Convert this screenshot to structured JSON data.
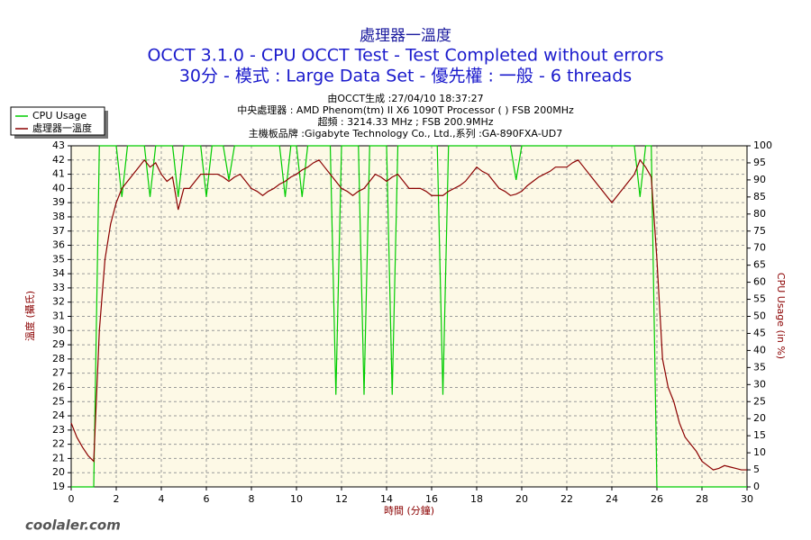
{
  "chart_data": {
    "type": "line",
    "title": "處理器一溫度",
    "subtitle": "OCCT 3.1.0 - CPU OCCT Test - Test Completed without errors",
    "subtitle2": "30分 - 模式 : Large Data Set - 優先權 : 一般 - 6 threads",
    "info": [
      "由OCCT生成 :27/04/10 18:37:27",
      "中央處理器 : AMD Phenom(tm) II X6 1090T Processor (  ) FSB 200MHz",
      "超頻 : 3214.33 MHz ; FSB 200.9MHz",
      "主機板品牌 :Gigabyte Technology Co., Ltd.,系列 :GA-890FXA-UD7"
    ],
    "x_label": "時間 (分鐘)",
    "y_label": "溫度 (攝氏)",
    "y2_label": "CPU Usage (in %)",
    "watermark": "coolaler.com",
    "xlim": [
      0,
      30
    ],
    "xticks": [
      0,
      2,
      4,
      6,
      8,
      10,
      12,
      14,
      16,
      18,
      20,
      22,
      24,
      26,
      28,
      30
    ],
    "ylim": [
      19,
      43
    ],
    "yticks": [
      19,
      20,
      21,
      22,
      23,
      24,
      25,
      26,
      27,
      28,
      29,
      30,
      31,
      32,
      33,
      34,
      35,
      36,
      37,
      38,
      39,
      40,
      41,
      42,
      43
    ],
    "y2lim": [
      0,
      100
    ],
    "y2ticks": [
      0,
      5,
      10,
      15,
      20,
      25,
      30,
      35,
      40,
      45,
      50,
      55,
      60,
      65,
      70,
      75,
      80,
      85,
      90,
      95,
      100
    ],
    "grid": true,
    "legend": "top-left",
    "x": [
      0,
      0.25,
      0.5,
      0.75,
      1,
      1.25,
      1.5,
      1.75,
      2,
      2.25,
      2.5,
      2.75,
      3,
      3.25,
      3.5,
      3.75,
      4,
      4.25,
      4.5,
      4.75,
      5,
      5.25,
      5.5,
      5.75,
      6,
      6.25,
      6.5,
      6.75,
      7,
      7.25,
      7.5,
      7.75,
      8,
      8.25,
      8.5,
      8.75,
      9,
      9.25,
      9.5,
      9.75,
      10,
      10.25,
      10.5,
      10.75,
      11,
      11.25,
      11.5,
      11.75,
      12,
      12.25,
      12.5,
      12.75,
      13,
      13.25,
      13.5,
      13.75,
      14,
      14.25,
      14.5,
      14.75,
      15,
      15.25,
      15.5,
      15.75,
      16,
      16.25,
      16.5,
      16.75,
      17,
      17.25,
      17.5,
      17.75,
      18,
      18.25,
      18.5,
      18.75,
      19,
      19.25,
      19.5,
      19.75,
      20,
      20.25,
      20.5,
      20.75,
      21,
      21.25,
      21.5,
      21.75,
      22,
      22.25,
      22.5,
      22.75,
      23,
      23.25,
      23.5,
      23.75,
      24,
      24.25,
      24.5,
      24.75,
      25,
      25.25,
      25.5,
      25.75,
      26,
      26.25,
      26.5,
      26.75,
      27,
      27.25,
      27.5,
      27.75,
      28,
      28.25,
      28.5,
      28.75,
      29,
      29.25,
      29.5,
      29.75,
      30
    ],
    "series": [
      {
        "name": "CPU Usage",
        "color": "#00cc00",
        "axis": "y2",
        "values": [
          0,
          0,
          0,
          0,
          0,
          100,
          100,
          100,
          100,
          85,
          100,
          100,
          100,
          100,
          85,
          100,
          100,
          100,
          100,
          85,
          100,
          100,
          100,
          100,
          85,
          100,
          100,
          100,
          90,
          100,
          100,
          100,
          100,
          100,
          100,
          100,
          100,
          100,
          85,
          100,
          100,
          85,
          100,
          100,
          100,
          100,
          100,
          27,
          100,
          100,
          100,
          100,
          27,
          100,
          100,
          100,
          100,
          27,
          100,
          100,
          100,
          100,
          100,
          100,
          100,
          100,
          27,
          100,
          100,
          100,
          100,
          100,
          100,
          100,
          100,
          100,
          100,
          100,
          100,
          90,
          100,
          100,
          100,
          100,
          100,
          100,
          100,
          100,
          100,
          100,
          100,
          100,
          100,
          100,
          100,
          100,
          100,
          100,
          100,
          100,
          100,
          85,
          100,
          100,
          0,
          0,
          0,
          0,
          0,
          0,
          0,
          0,
          0,
          0,
          0,
          0,
          0,
          0,
          0,
          0,
          0
        ]
      },
      {
        "name": "處理器一溫度",
        "color": "#8b0000",
        "values": [
          23.5,
          22.5,
          21.8,
          21.2,
          20.8,
          30,
          35,
          37.5,
          39,
          40,
          40.5,
          41,
          41.5,
          42,
          41.5,
          41.8,
          41,
          40.5,
          40.8,
          38.5,
          40,
          40,
          40.5,
          41,
          41,
          41,
          41,
          40.8,
          40.5,
          40.8,
          41,
          40.5,
          40,
          39.8,
          39.5,
          39.8,
          40,
          40.3,
          40.5,
          40.8,
          41,
          41.3,
          41.5,
          41.8,
          42,
          41.5,
          41,
          40.5,
          40,
          39.8,
          39.5,
          39.8,
          40,
          40.5,
          41,
          40.8,
          40.5,
          40.8,
          41,
          40.5,
          40,
          40,
          40,
          39.8,
          39.5,
          39.5,
          39.5,
          39.8,
          40,
          40.2,
          40.5,
          41,
          41.5,
          41.2,
          41,
          40.5,
          40,
          39.8,
          39.5,
          39.6,
          39.8,
          40.2,
          40.5,
          40.8,
          41,
          41.2,
          41.5,
          41.5,
          41.5,
          41.8,
          42,
          41.5,
          41,
          40.5,
          40,
          39.5,
          39,
          39.5,
          40,
          40.5,
          41,
          42,
          41.5,
          40.8,
          35,
          28,
          26,
          25,
          23.5,
          22.5,
          22,
          21.5,
          20.8,
          20.5,
          20.2,
          20.3,
          20.5,
          20.4,
          20.3,
          20.2,
          20.2
        ]
      }
    ]
  }
}
